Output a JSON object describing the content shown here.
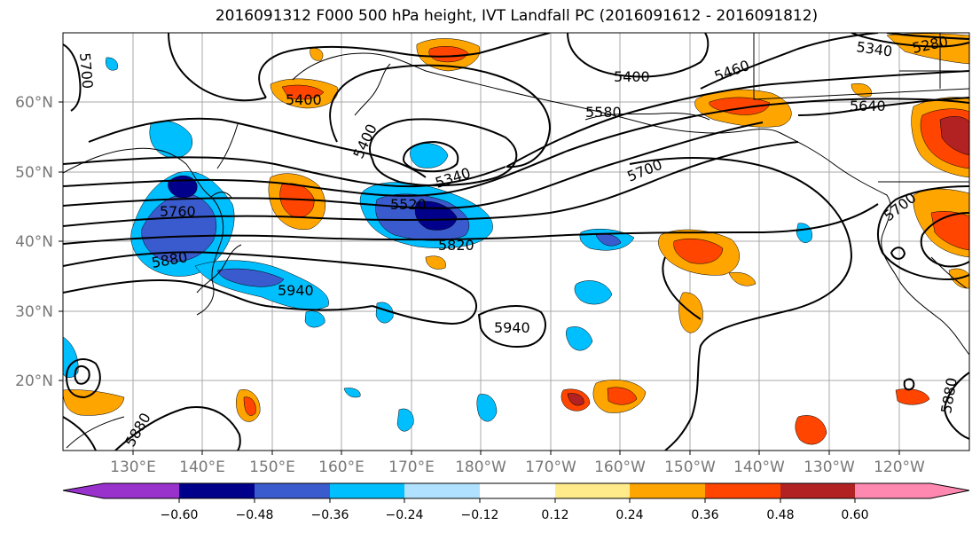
{
  "title": "2016091312 F000 500 hPa height, IVT Landfall PC (2016091612 - 2016091812)",
  "lat_labels": [
    "60°N",
    "50°N",
    "40°N",
    "30°N",
    "20°N"
  ],
  "lon_labels": [
    "130°E",
    "140°E",
    "150°E",
    "160°E",
    "170°E",
    "180°W",
    "170°W",
    "160°W",
    "150°W",
    "140°W",
    "130°W",
    "120°W"
  ],
  "contour_labels": [
    "5700",
    "5400",
    "5400",
    "5400",
    "5340",
    "5520",
    "5760",
    "5880",
    "5820",
    "5940",
    "5940",
    "5580",
    "5460",
    "5400",
    "5340",
    "5280",
    "5640",
    "5700",
    "5700",
    "5880",
    "5880"
  ],
  "colorbar": {
    "ticks": [
      "−0.60",
      "−0.48",
      "−0.36",
      "−0.24",
      "−0.12",
      "0.12",
      "0.24",
      "0.36",
      "0.48",
      "0.60"
    ],
    "colors": [
      "#9932cc",
      "#00008b",
      "#3a5bcd",
      "#00bfff",
      "#b0e2ff",
      "#ffffff",
      "#ffeb8a",
      "#ffa500",
      "#ff4500",
      "#b22222",
      "#ff88b0"
    ]
  }
}
